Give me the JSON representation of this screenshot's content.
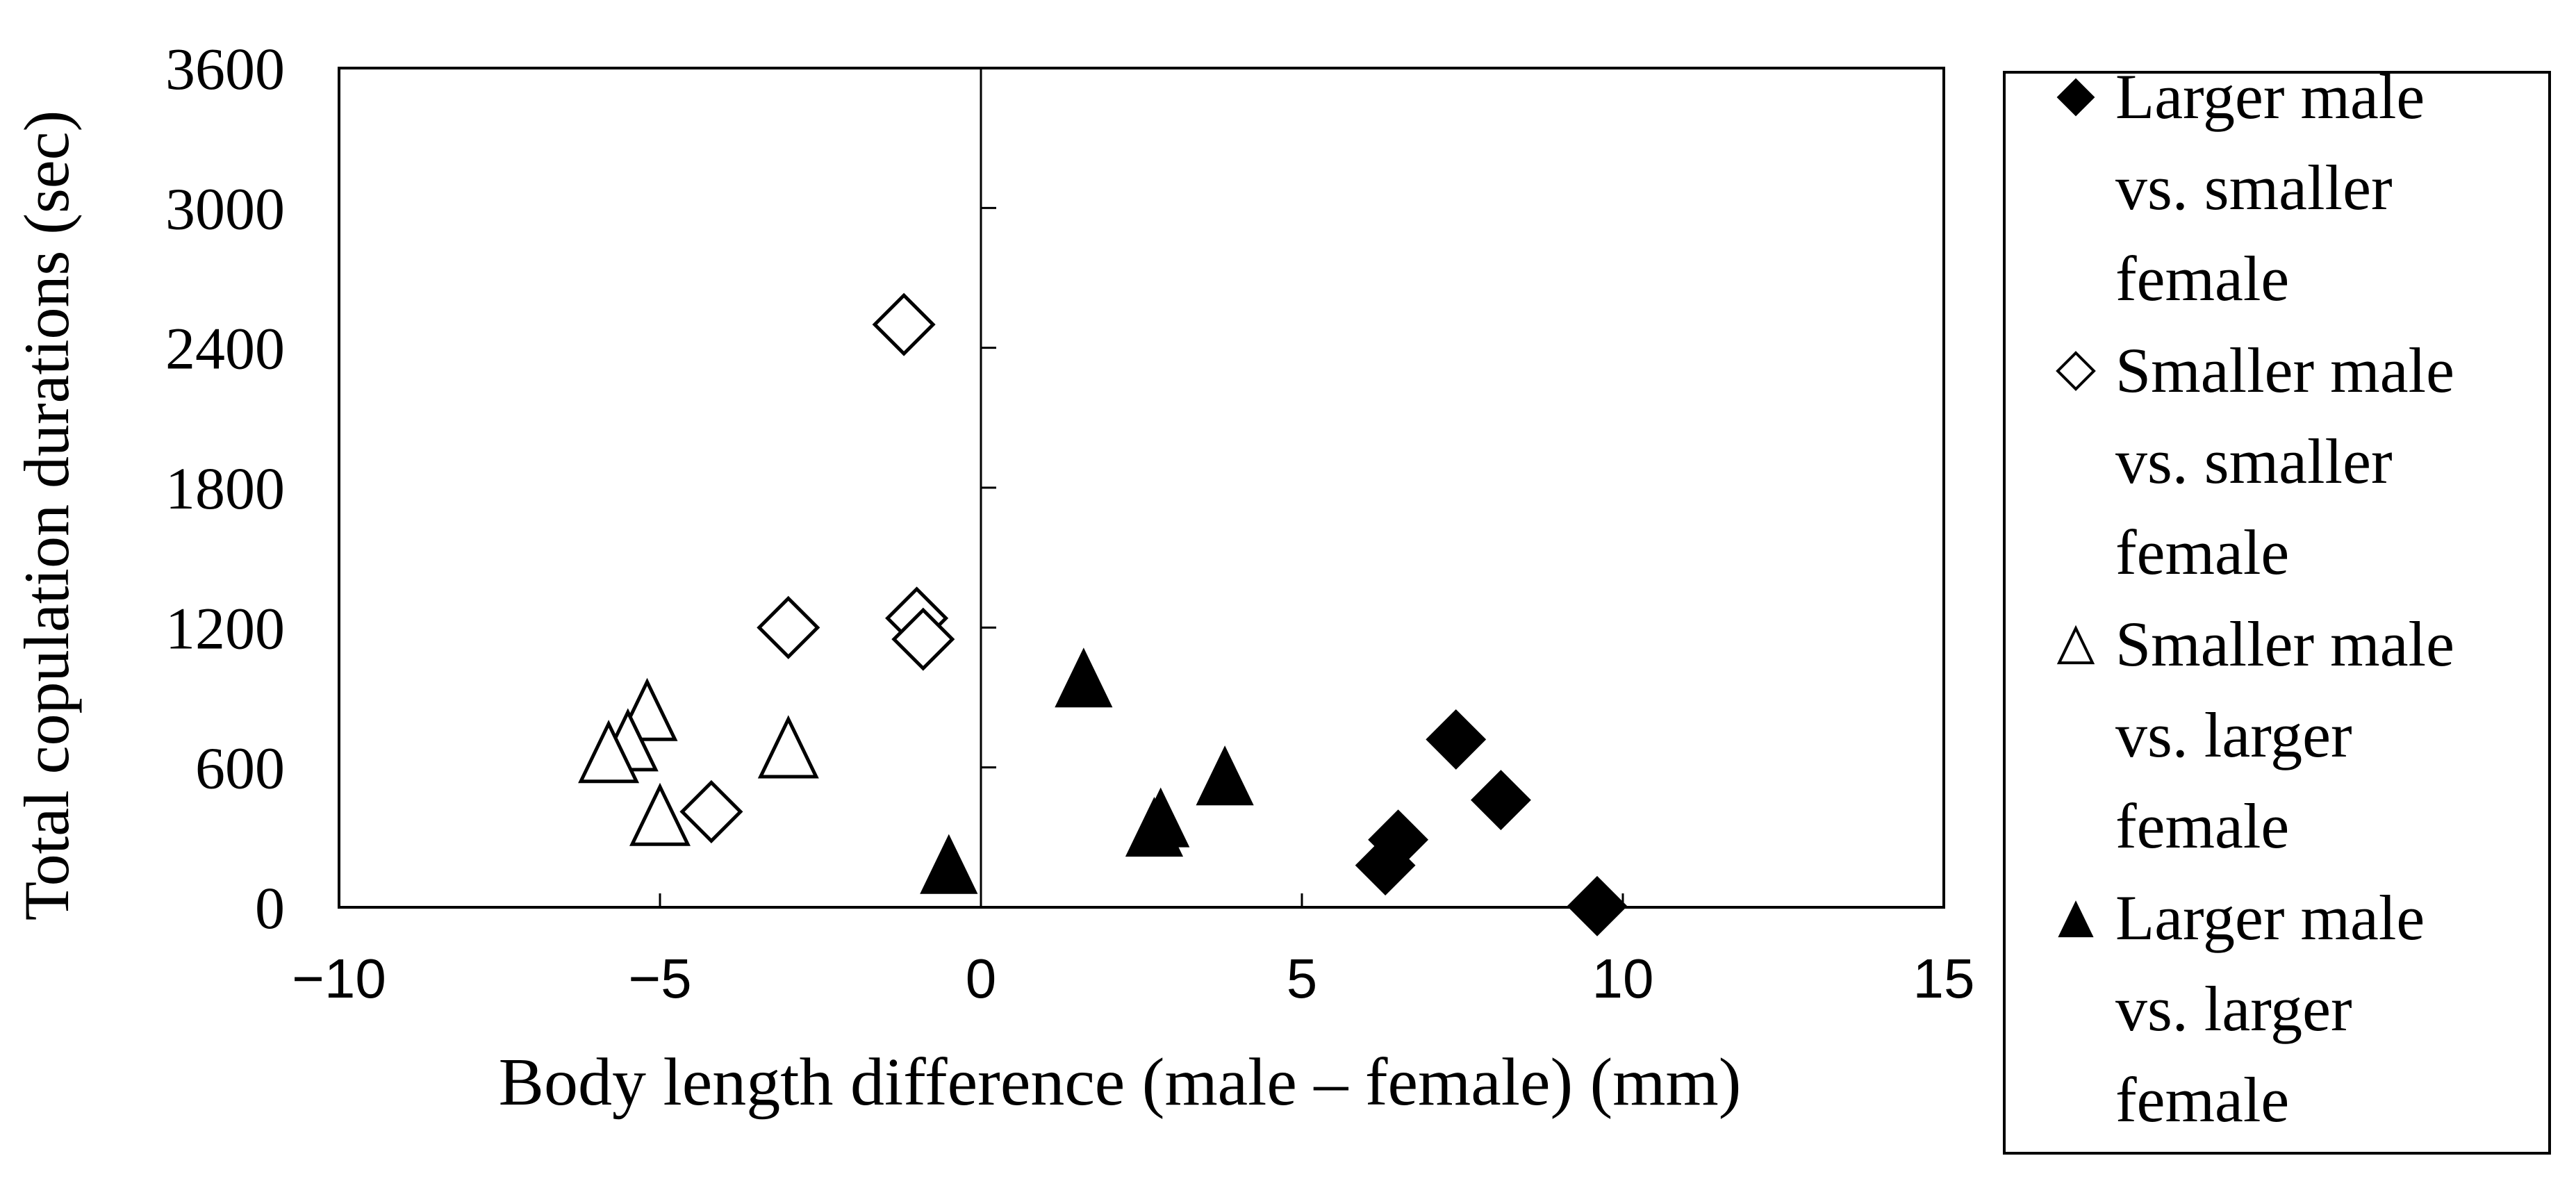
{
  "chart_data": {
    "type": "scatter",
    "title": "",
    "xlabel": "Body length difference (male – female) (mm)",
    "ylabel": "Total copulation durations (sec)",
    "xlim": [
      -10,
      15
    ],
    "ylim": [
      0,
      3600
    ],
    "x_ticks": [
      -10,
      -5,
      0,
      5,
      10,
      15
    ],
    "x_tick_labels": [
      "−10",
      "−5",
      "0",
      "5",
      "10",
      "15"
    ],
    "y_ticks": [
      0,
      600,
      1200,
      1800,
      2400,
      3000,
      3600
    ],
    "y_tick_labels": [
      "0",
      "600",
      "1200",
      "1800",
      "2400",
      "3000",
      "3600"
    ],
    "grid": false,
    "zero_line": "x = 0 vertical line",
    "legend_position": "right, outside plot",
    "series": [
      {
        "name": "Larger male vs. smaller female",
        "legend_lines": [
          "Larger male",
          "vs. smaller",
          "female"
        ],
        "marker": "diamond",
        "filled": true,
        "points": [
          {
            "x": 7.4,
            "y": 720
          },
          {
            "x": 8.1,
            "y": 460
          },
          {
            "x": 6.5,
            "y": 290
          },
          {
            "x": 6.3,
            "y": 180
          },
          {
            "x": 9.6,
            "y": 5
          }
        ]
      },
      {
        "name": "Smaller male vs. smaller female",
        "legend_lines": [
          "Smaller male",
          "vs. smaller",
          "female"
        ],
        "marker": "diamond",
        "filled": false,
        "points": [
          {
            "x": -1.2,
            "y": 2500
          },
          {
            "x": -1.0,
            "y": 1240
          },
          {
            "x": -0.9,
            "y": 1150
          },
          {
            "x": -3.0,
            "y": 1200
          },
          {
            "x": -4.2,
            "y": 410
          }
        ]
      },
      {
        "name": "Smaller male vs. larger female",
        "legend_lines": [
          "Smaller male",
          "vs. larger",
          "female"
        ],
        "marker": "triangle",
        "filled": false,
        "points": [
          {
            "x": -5.2,
            "y": 830
          },
          {
            "x": -5.5,
            "y": 700
          },
          {
            "x": -5.8,
            "y": 650
          },
          {
            "x": -3.0,
            "y": 670
          },
          {
            "x": -5.0,
            "y": 380
          }
        ]
      },
      {
        "name": "Larger male vs. larger female",
        "legend_lines": [
          "Larger male",
          "vs. larger",
          "female"
        ],
        "marker": "triangle",
        "filled": true,
        "points": [
          {
            "x": 1.6,
            "y": 970
          },
          {
            "x": 3.8,
            "y": 550
          },
          {
            "x": 2.7,
            "y": 330
          },
          {
            "x": 2.8,
            "y": 370
          },
          {
            "x": -0.5,
            "y": 170
          }
        ]
      }
    ]
  }
}
